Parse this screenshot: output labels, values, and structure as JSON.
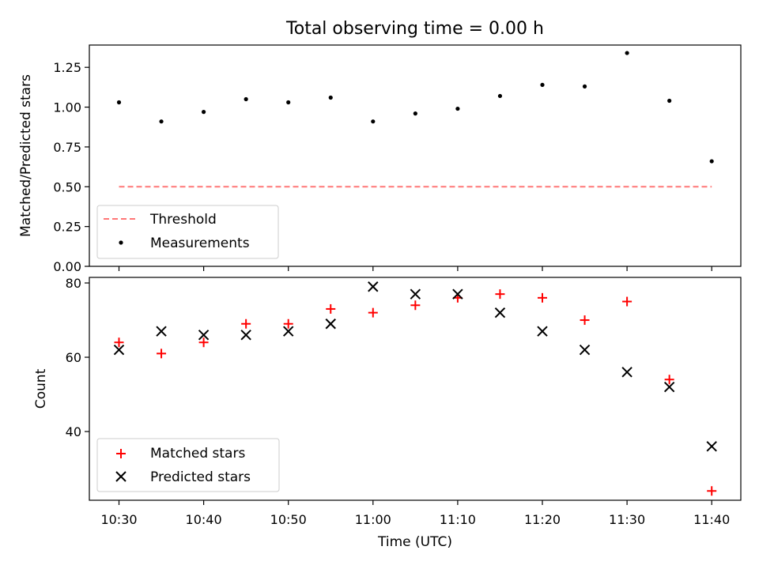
{
  "title": "Total observing time = 0.00 h",
  "colors": {
    "threshold": "#ff7777",
    "measurements": "#000000",
    "matched": "#ff0000",
    "predicted": "#000000"
  },
  "chart_data": [
    {
      "type": "scatter",
      "ylabel": "Matched/Predicted stars",
      "ylim": [
        0,
        1.39
      ],
      "yticks": [
        0,
        0.25,
        0.5,
        0.75,
        1.0,
        1.25
      ],
      "yticklabels": [
        "0.00",
        "0.25",
        "0.50",
        "0.75",
        "1.00",
        "1.25"
      ],
      "x": [
        "10:30",
        "10:35",
        "10:40",
        "10:45",
        "10:50",
        "10:55",
        "11:00",
        "11:05",
        "11:10",
        "11:15",
        "11:20",
        "11:25",
        "11:30",
        "11:35",
        "11:40"
      ],
      "legend_placement": "lower-left",
      "series": [
        {
          "name": "Threshold",
          "style": "dashed-line",
          "values": [
            0.5,
            0.5
          ]
        },
        {
          "name": "Measurements",
          "style": "dot",
          "values": [
            1.03,
            0.91,
            0.97,
            1.05,
            1.03,
            1.06,
            0.91,
            0.96,
            0.99,
            1.07,
            1.14,
            1.13,
            1.34,
            1.04,
            0.66
          ]
        }
      ]
    },
    {
      "type": "scatter",
      "ylabel": "Count",
      "xlabel": "Time (UTC)",
      "ylim": [
        21.5,
        81.5
      ],
      "yticks": [
        40,
        60,
        80
      ],
      "yticklabels": [
        "40",
        "60",
        "80"
      ],
      "x": [
        "10:30",
        "10:35",
        "10:40",
        "10:45",
        "10:50",
        "10:55",
        "11:00",
        "11:05",
        "11:10",
        "11:15",
        "11:20",
        "11:25",
        "11:30",
        "11:35",
        "11:40"
      ],
      "xticklabels": [
        "10:30",
        "10:40",
        "10:50",
        "11:00",
        "11:10",
        "11:20",
        "11:30",
        "11:40"
      ],
      "legend_placement": "lower-left",
      "series": [
        {
          "name": "Matched stars",
          "marker": "plus",
          "values": [
            64,
            61,
            64,
            69,
            69,
            73,
            72,
            74,
            76,
            77,
            76,
            70,
            75,
            54,
            24
          ]
        },
        {
          "name": "Predicted stars",
          "marker": "x",
          "values": [
            62,
            67,
            66,
            66,
            67,
            69,
            79,
            77,
            77,
            72,
            67,
            62,
            56,
            52,
            36
          ]
        }
      ]
    }
  ]
}
